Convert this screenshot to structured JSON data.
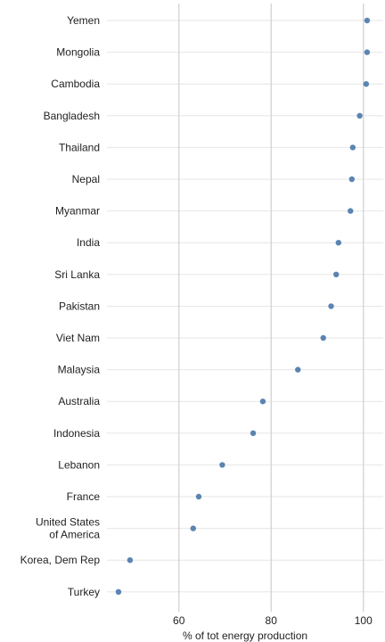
{
  "chart_data": {
    "type": "dot",
    "title": "",
    "xlabel": "% of tot energy production",
    "ylabel": "",
    "xlim": [
      44.4,
      104.3
    ],
    "xticks": [
      60,
      80,
      100
    ],
    "grid": true,
    "colors": {
      "point": "#5b84b1",
      "grid_major": "#cfcfcf",
      "grid_minor": "#e6e6e6",
      "text": "#222222"
    },
    "categories": [
      "Yemen",
      "Mongolia",
      "Cambodia",
      "Bangladesh",
      "Thailand",
      "Nepal",
      "Myanmar",
      "India",
      "Sri Lanka",
      "Pakistan",
      "Viet Nam",
      "Malaysia",
      "Australia",
      "Indonesia",
      "Lebanon",
      "France",
      "United States\nof America",
      "Korea, Dem Rep",
      "Turkey"
    ],
    "values": [
      100.8,
      100.8,
      100.6,
      99.2,
      97.7,
      97.5,
      97.2,
      94.6,
      94.1,
      93.0,
      91.3,
      85.8,
      78.2,
      76.1,
      69.4,
      64.3,
      63.1,
      49.4,
      46.9
    ]
  }
}
